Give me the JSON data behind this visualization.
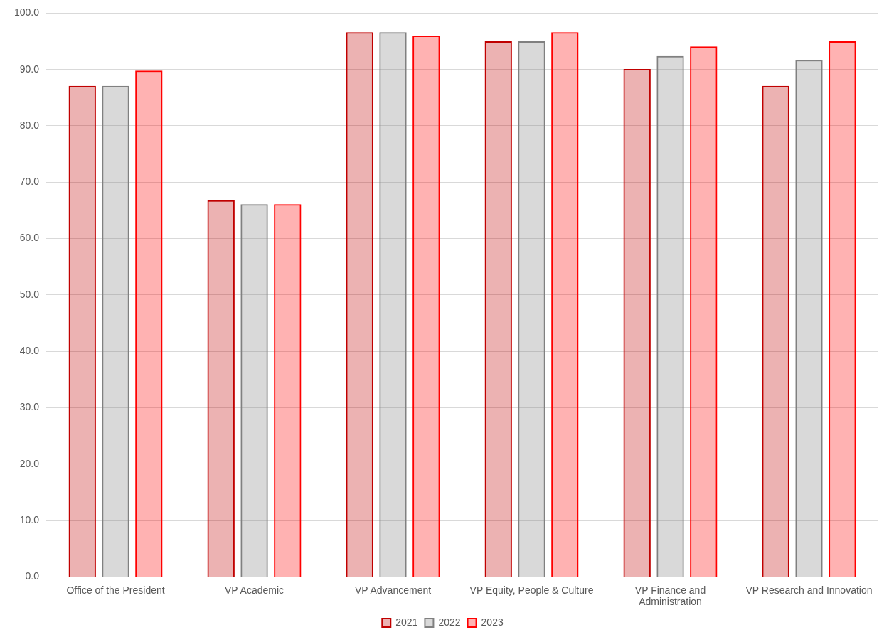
{
  "chart_data": {
    "type": "bar",
    "categories": [
      "Office of the President",
      "VP Academic",
      "VP Advancement",
      "VP Equity, People & Culture",
      "VP Finance and Administration",
      "VP Research and Innovation"
    ],
    "series": [
      {
        "name": "2021",
        "color": "#c00000",
        "values": [
          87.1,
          66.8,
          96.6,
          95.0,
          90.1,
          87.1
        ]
      },
      {
        "name": "2022",
        "color": "#808080",
        "values": [
          87.1,
          66.1,
          96.6,
          95.0,
          92.4,
          91.7
        ]
      },
      {
        "name": "2023",
        "color": "#ff0000",
        "values": [
          89.8,
          66.1,
          96.0,
          96.6,
          94.1,
          95.0
        ]
      }
    ],
    "ylim": [
      0,
      100
    ],
    "yticks": [
      {
        "value": 0,
        "label": "0.0"
      },
      {
        "value": 10,
        "label": "10.0"
      },
      {
        "value": 20,
        "label": "20.0"
      },
      {
        "value": 30,
        "label": "30.0"
      },
      {
        "value": 40,
        "label": "40.0"
      },
      {
        "value": 50,
        "label": "50.0"
      },
      {
        "value": 60,
        "label": "60.0"
      },
      {
        "value": 70,
        "label": "70.0"
      },
      {
        "value": 80,
        "label": "80.0"
      },
      {
        "value": 90,
        "label": "90.0"
      },
      {
        "value": 100,
        "label": "100.0"
      }
    ],
    "grid": "y",
    "legend": "bottom"
  }
}
